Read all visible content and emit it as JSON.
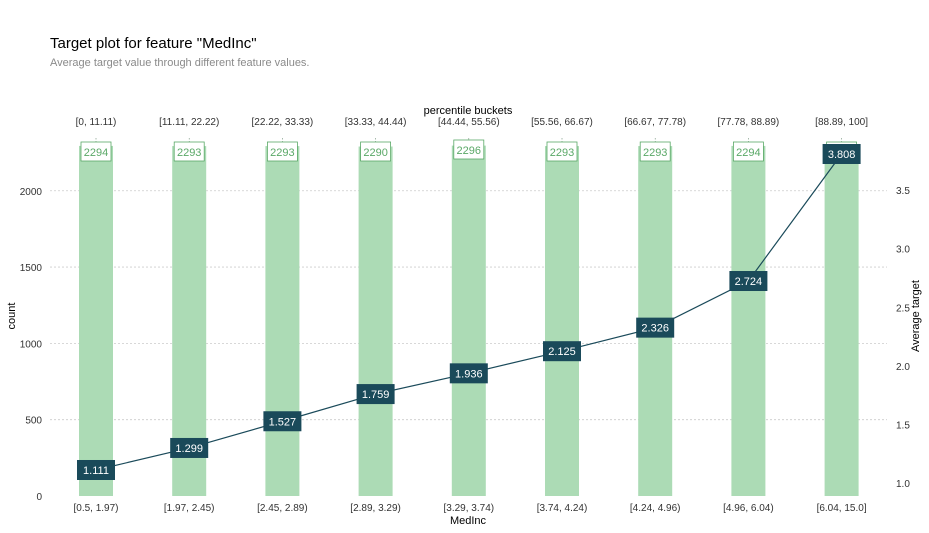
{
  "title": "Target plot for feature \"MedInc\"",
  "subtitle": "Average target value through different feature values.",
  "colors": {
    "bar": "#acdbb5",
    "count_text": "#5aa867",
    "count_border": "#5aa867",
    "line": "#1a4a5a",
    "label_bg": "#1a4a5a",
    "label_text": "#ffffff",
    "axis_text": "#333333",
    "grid": "#cccccc"
  },
  "chart_data": {
    "type": "bar",
    "title": "Target plot for feature \"MedInc\"",
    "subtitle": "Average target value through different feature values.",
    "xlabel": "MedInc",
    "ylabel_left": "count",
    "ylabel_right": "Average target",
    "top_axis_label": "percentile buckets",
    "categories": [
      "[0.5, 1.97)",
      "[1.97, 2.45)",
      "[2.45, 2.89)",
      "[2.89, 3.29)",
      "[3.29, 3.74)",
      "[3.74, 4.24)",
      "[4.24, 4.96)",
      "[4.96, 6.04)",
      "[6.04, 15.0]"
    ],
    "percentile_buckets": [
      "[0, 11.11)",
      "[11.11, 22.22)",
      "[22.22, 33.33)",
      "[33.33, 44.44)",
      "[44.44, 55.56)",
      "[55.56, 66.67)",
      "[66.67, 77.78)",
      "[77.78, 88.89)",
      "[88.89, 100]"
    ],
    "series": [
      {
        "values": [
          2294,
          2293,
          2293,
          2290,
          2296,
          2293,
          2293,
          2294,
          2300
        ],
        "axis": "left"
      },
      {
        "values": [
          1.111,
          1.299,
          1.527,
          1.759,
          1.936,
          2.125,
          2.326,
          2.724,
          3.808
        ],
        "axis": "right"
      }
    ],
    "count_labels": [
      "2294",
      "2293",
      "2293",
      "2290",
      "2296",
      "2293",
      "2293",
      "2294",
      ""
    ],
    "target_labels": [
      "1.111",
      "1.299",
      "1.527",
      "1.759",
      "1.936",
      "2.125",
      "2.326",
      "2.724",
      "3.808"
    ],
    "ylim_left": [
      0,
      2300
    ],
    "yticks_left": [
      0,
      500,
      1000,
      1500,
      2000
    ],
    "ylim_right": [
      1.0,
      3.808
    ],
    "yticks_right": [
      1.0,
      1.5,
      2.0,
      2.5,
      3.0,
      3.5
    ],
    "yticks_right_labels": [
      "1.0",
      "1.5",
      "2.0",
      "2.5",
      "3.0",
      "3.5"
    ],
    "grid": true
  }
}
